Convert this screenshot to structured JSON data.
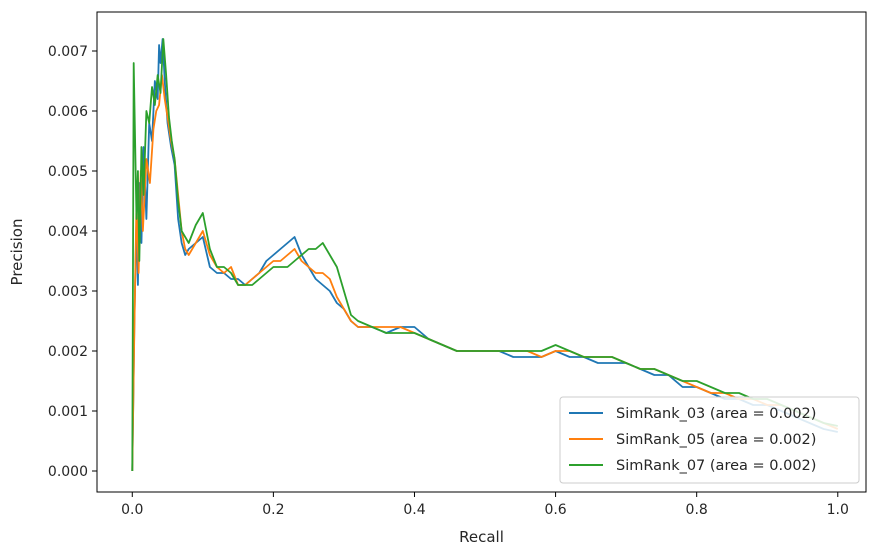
{
  "chart_data": {
    "type": "line",
    "title": "",
    "xlabel": "Recall",
    "ylabel": "Precision",
    "xlim": [
      -0.05,
      1.04
    ],
    "ylim": [
      -0.00035,
      0.00765
    ],
    "xticks": [
      0.0,
      0.2,
      0.4,
      0.6,
      0.8,
      1.0
    ],
    "xtick_labels": [
      "0.0",
      "0.2",
      "0.4",
      "0.6",
      "0.8",
      "1.0"
    ],
    "yticks": [
      0.0,
      0.001,
      0.002,
      0.003,
      0.004,
      0.005,
      0.006,
      0.007
    ],
    "ytick_labels": [
      "0.000",
      "0.001",
      "0.002",
      "0.003",
      "0.004",
      "0.005",
      "0.006",
      "0.007"
    ],
    "grid": false,
    "legend_position": "lower-right",
    "series": [
      {
        "name": "SimRank_03 (area = 0.002)",
        "color": "#1f77b4",
        "x": [
          0.0,
          0.003,
          0.006,
          0.008,
          0.01,
          0.013,
          0.016,
          0.02,
          0.024,
          0.028,
          0.032,
          0.036,
          0.038,
          0.04,
          0.043,
          0.046,
          0.05,
          0.055,
          0.06,
          0.065,
          0.07,
          0.075,
          0.08,
          0.09,
          0.1,
          0.11,
          0.12,
          0.13,
          0.14,
          0.15,
          0.16,
          0.17,
          0.18,
          0.19,
          0.2,
          0.21,
          0.22,
          0.23,
          0.24,
          0.25,
          0.26,
          0.27,
          0.28,
          0.29,
          0.3,
          0.31,
          0.32,
          0.34,
          0.36,
          0.38,
          0.4,
          0.42,
          0.44,
          0.46,
          0.48,
          0.5,
          0.52,
          0.54,
          0.56,
          0.58,
          0.6,
          0.62,
          0.64,
          0.66,
          0.68,
          0.7,
          0.72,
          0.74,
          0.76,
          0.78,
          0.8,
          0.82,
          0.84,
          0.86,
          0.88,
          0.9,
          0.92,
          0.94,
          0.96,
          0.98,
          1.0
        ],
        "y": [
          0.0,
          0.0025,
          0.0042,
          0.0031,
          0.0048,
          0.0038,
          0.0054,
          0.0042,
          0.0058,
          0.0055,
          0.0065,
          0.0062,
          0.0071,
          0.0068,
          0.0072,
          0.0065,
          0.0058,
          0.0054,
          0.0051,
          0.0042,
          0.0038,
          0.0036,
          0.0037,
          0.0038,
          0.0039,
          0.0034,
          0.0033,
          0.0033,
          0.0032,
          0.0032,
          0.0031,
          0.0032,
          0.0033,
          0.0035,
          0.0036,
          0.0037,
          0.0038,
          0.0039,
          0.0036,
          0.0034,
          0.0032,
          0.0031,
          0.003,
          0.0028,
          0.0027,
          0.0025,
          0.0024,
          0.0024,
          0.0023,
          0.0024,
          0.0024,
          0.0022,
          0.0021,
          0.002,
          0.002,
          0.002,
          0.002,
          0.0019,
          0.0019,
          0.0019,
          0.002,
          0.0019,
          0.0019,
          0.0018,
          0.0018,
          0.0018,
          0.0017,
          0.0016,
          0.0016,
          0.0014,
          0.0014,
          0.0013,
          0.0012,
          0.0012,
          0.0011,
          0.0011,
          0.001,
          0.0009,
          0.0008,
          0.0007,
          0.00065
        ]
      },
      {
        "name": "SimRank_05 (area = 0.002)",
        "color": "#ff7f0e",
        "x": [
          0.0,
          0.003,
          0.006,
          0.009,
          0.012,
          0.015,
          0.02,
          0.025,
          0.03,
          0.034,
          0.038,
          0.042,
          0.046,
          0.05,
          0.055,
          0.06,
          0.065,
          0.07,
          0.075,
          0.08,
          0.09,
          0.1,
          0.11,
          0.12,
          0.13,
          0.14,
          0.15,
          0.16,
          0.17,
          0.18,
          0.19,
          0.2,
          0.21,
          0.22,
          0.23,
          0.24,
          0.25,
          0.26,
          0.27,
          0.28,
          0.29,
          0.3,
          0.31,
          0.32,
          0.34,
          0.36,
          0.38,
          0.4,
          0.42,
          0.44,
          0.46,
          0.48,
          0.5,
          0.52,
          0.54,
          0.56,
          0.58,
          0.6,
          0.62,
          0.64,
          0.66,
          0.68,
          0.7,
          0.72,
          0.74,
          0.76,
          0.78,
          0.8,
          0.82,
          0.84,
          0.86,
          0.88,
          0.9,
          0.92,
          0.94,
          0.96,
          0.98,
          1.0
        ],
        "y": [
          0.0,
          0.0024,
          0.0045,
          0.0033,
          0.005,
          0.004,
          0.0052,
          0.0048,
          0.0057,
          0.006,
          0.0061,
          0.0066,
          0.0062,
          0.0059,
          0.0055,
          0.0052,
          0.0046,
          0.004,
          0.0037,
          0.0036,
          0.0038,
          0.004,
          0.0036,
          0.0034,
          0.0033,
          0.0034,
          0.0031,
          0.0031,
          0.0032,
          0.0033,
          0.0034,
          0.0035,
          0.0035,
          0.0036,
          0.0037,
          0.0035,
          0.0034,
          0.0033,
          0.0033,
          0.0032,
          0.0029,
          0.0027,
          0.0025,
          0.0024,
          0.0024,
          0.0024,
          0.0024,
          0.0023,
          0.0022,
          0.0021,
          0.002,
          0.002,
          0.002,
          0.002,
          0.002,
          0.002,
          0.0019,
          0.002,
          0.002,
          0.0019,
          0.0019,
          0.0019,
          0.0018,
          0.0017,
          0.0017,
          0.0016,
          0.0015,
          0.0014,
          0.0013,
          0.0013,
          0.0012,
          0.0012,
          0.0011,
          0.0011,
          0.001,
          0.0009,
          0.0008,
          0.0007
        ]
      },
      {
        "name": "SimRank_07 (area = 0.002)",
        "color": "#2ca02c",
        "x": [
          0.0,
          0.002,
          0.004,
          0.006,
          0.008,
          0.01,
          0.013,
          0.016,
          0.02,
          0.024,
          0.028,
          0.032,
          0.036,
          0.04,
          0.044,
          0.048,
          0.052,
          0.056,
          0.06,
          0.065,
          0.07,
          0.075,
          0.08,
          0.09,
          0.1,
          0.11,
          0.12,
          0.13,
          0.14,
          0.15,
          0.16,
          0.17,
          0.18,
          0.19,
          0.2,
          0.21,
          0.22,
          0.23,
          0.24,
          0.25,
          0.26,
          0.27,
          0.28,
          0.29,
          0.3,
          0.31,
          0.32,
          0.34,
          0.36,
          0.38,
          0.4,
          0.42,
          0.44,
          0.46,
          0.48,
          0.5,
          0.52,
          0.54,
          0.56,
          0.58,
          0.6,
          0.62,
          0.64,
          0.66,
          0.68,
          0.7,
          0.72,
          0.74,
          0.76,
          0.78,
          0.8,
          0.82,
          0.84,
          0.86,
          0.88,
          0.9,
          0.92,
          0.94,
          0.96,
          0.98,
          1.0
        ],
        "y": [
          0.0,
          0.0068,
          0.0055,
          0.0042,
          0.005,
          0.0035,
          0.0054,
          0.0046,
          0.006,
          0.0058,
          0.0064,
          0.0061,
          0.0066,
          0.0063,
          0.0072,
          0.0066,
          0.0059,
          0.0055,
          0.0052,
          0.0045,
          0.004,
          0.0039,
          0.0038,
          0.0041,
          0.0043,
          0.0037,
          0.0034,
          0.0034,
          0.0033,
          0.0031,
          0.0031,
          0.0031,
          0.0032,
          0.0033,
          0.0034,
          0.0034,
          0.0034,
          0.0035,
          0.0036,
          0.0037,
          0.0037,
          0.0038,
          0.0036,
          0.0034,
          0.003,
          0.0026,
          0.0025,
          0.0024,
          0.0023,
          0.0023,
          0.0023,
          0.0022,
          0.0021,
          0.002,
          0.002,
          0.002,
          0.002,
          0.002,
          0.002,
          0.002,
          0.0021,
          0.002,
          0.0019,
          0.0019,
          0.0019,
          0.0018,
          0.0017,
          0.0017,
          0.0016,
          0.0015,
          0.0015,
          0.0014,
          0.0013,
          0.0013,
          0.0012,
          0.0012,
          0.0011,
          0.001,
          0.0009,
          0.0008,
          0.00075
        ]
      }
    ]
  }
}
